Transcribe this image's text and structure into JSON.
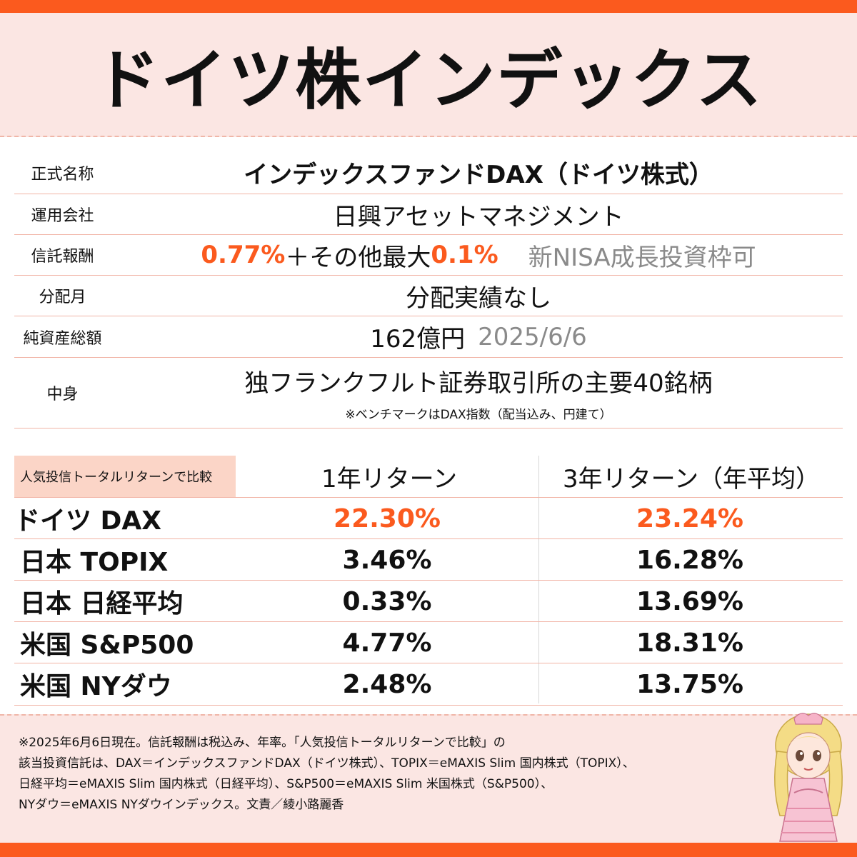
{
  "title": "ドイツ株インデックス",
  "info": {
    "official_name_label": "正式名称",
    "official_name": "インデックスファンドDAX（ドイツ株式）",
    "manager_label": "運用会社",
    "manager": "日興アセットマネジメント",
    "fee_label": "信託報酬",
    "fee_rate": "0.77%",
    "fee_mid": "＋その他最大",
    "fee_extra": "0.1%",
    "nisa": "新NISA成長投資枠可",
    "dist_label": "分配月",
    "dist_value": "分配実績なし",
    "aum_label": "純資産総額",
    "aum_value": "162億円",
    "aum_date": "2025/6/6",
    "content_label": "中身",
    "content_value": "独フランクフルト証券取引所の主要40銘柄",
    "benchmark_note": "※ベンチマークはDAX指数（配当込み、円建て）"
  },
  "comparison": {
    "label": "人気投信トータルリターンで比較",
    "col1": "1年リターン",
    "col2": "3年リターン（年平均）",
    "rows": [
      {
        "name": "ドイツ DAX",
        "r1": "22.30%",
        "r3": "23.24%"
      },
      {
        "name": "日本 TOPIX",
        "r1": "3.46%",
        "r3": "16.28%"
      },
      {
        "name": "日本 日経平均",
        "r1": "0.33%",
        "r3": "13.69%"
      },
      {
        "name": "米国 S&P500",
        "r1": "4.77%",
        "r3": "18.31%"
      },
      {
        "name": "米国 NYダウ",
        "r1": "2.48%",
        "r3": "13.75%"
      }
    ]
  },
  "footnote": {
    "line1": "※2025年6月6日現在。信託報酬は税込み、年率。「人気投信トータルリターンで比較」の",
    "line2": "該当投資信託は、DAX＝インデックスファンドDAX（ドイツ株式）、TOPIX＝eMAXIS Slim 国内株式（TOPIX）、",
    "line3": "日経平均＝eMAXIS Slim 国内株式（日経平均）、S&P500＝eMAXIS Slim 米国株式（S&P500）、",
    "line4": "NYダウ＝eMAXIS NYダウインデックス。文責／綾小路麗香"
  },
  "colors": {
    "accent": "#fb5a1e",
    "background": "#fbe6e3",
    "highlight": "#fbd5c7"
  }
}
